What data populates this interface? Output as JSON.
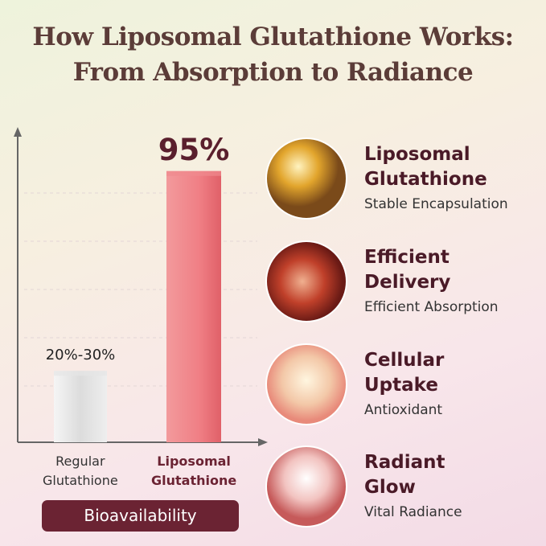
{
  "header": {
    "title_lines": [
      "How Liposomal Glutathione Works:",
      "From Absorption to Radiance"
    ]
  },
  "chart_data": {
    "type": "bar",
    "categories": [
      "Regular Glutathione",
      "Liposomal Glutathione"
    ],
    "values": [
      25,
      95
    ],
    "value_labels": [
      "20%-30%",
      "95%"
    ],
    "colors": [
      "#e6e6e6",
      "#ef8a8e"
    ],
    "ylim": [
      0,
      100
    ],
    "x_label": "Bioavailability"
  },
  "steps": [
    {
      "title": "Liposomal Glutathione",
      "subtitle": "Stable Encapsulation"
    },
    {
      "title": "Efficient Delivery",
      "subtitle": "Efficient Absorption"
    },
    {
      "title": "Cellular Uptake",
      "subtitle": "Antioxidant"
    },
    {
      "title": "Radiant Glow",
      "subtitle": "Vital Radiance"
    }
  ]
}
